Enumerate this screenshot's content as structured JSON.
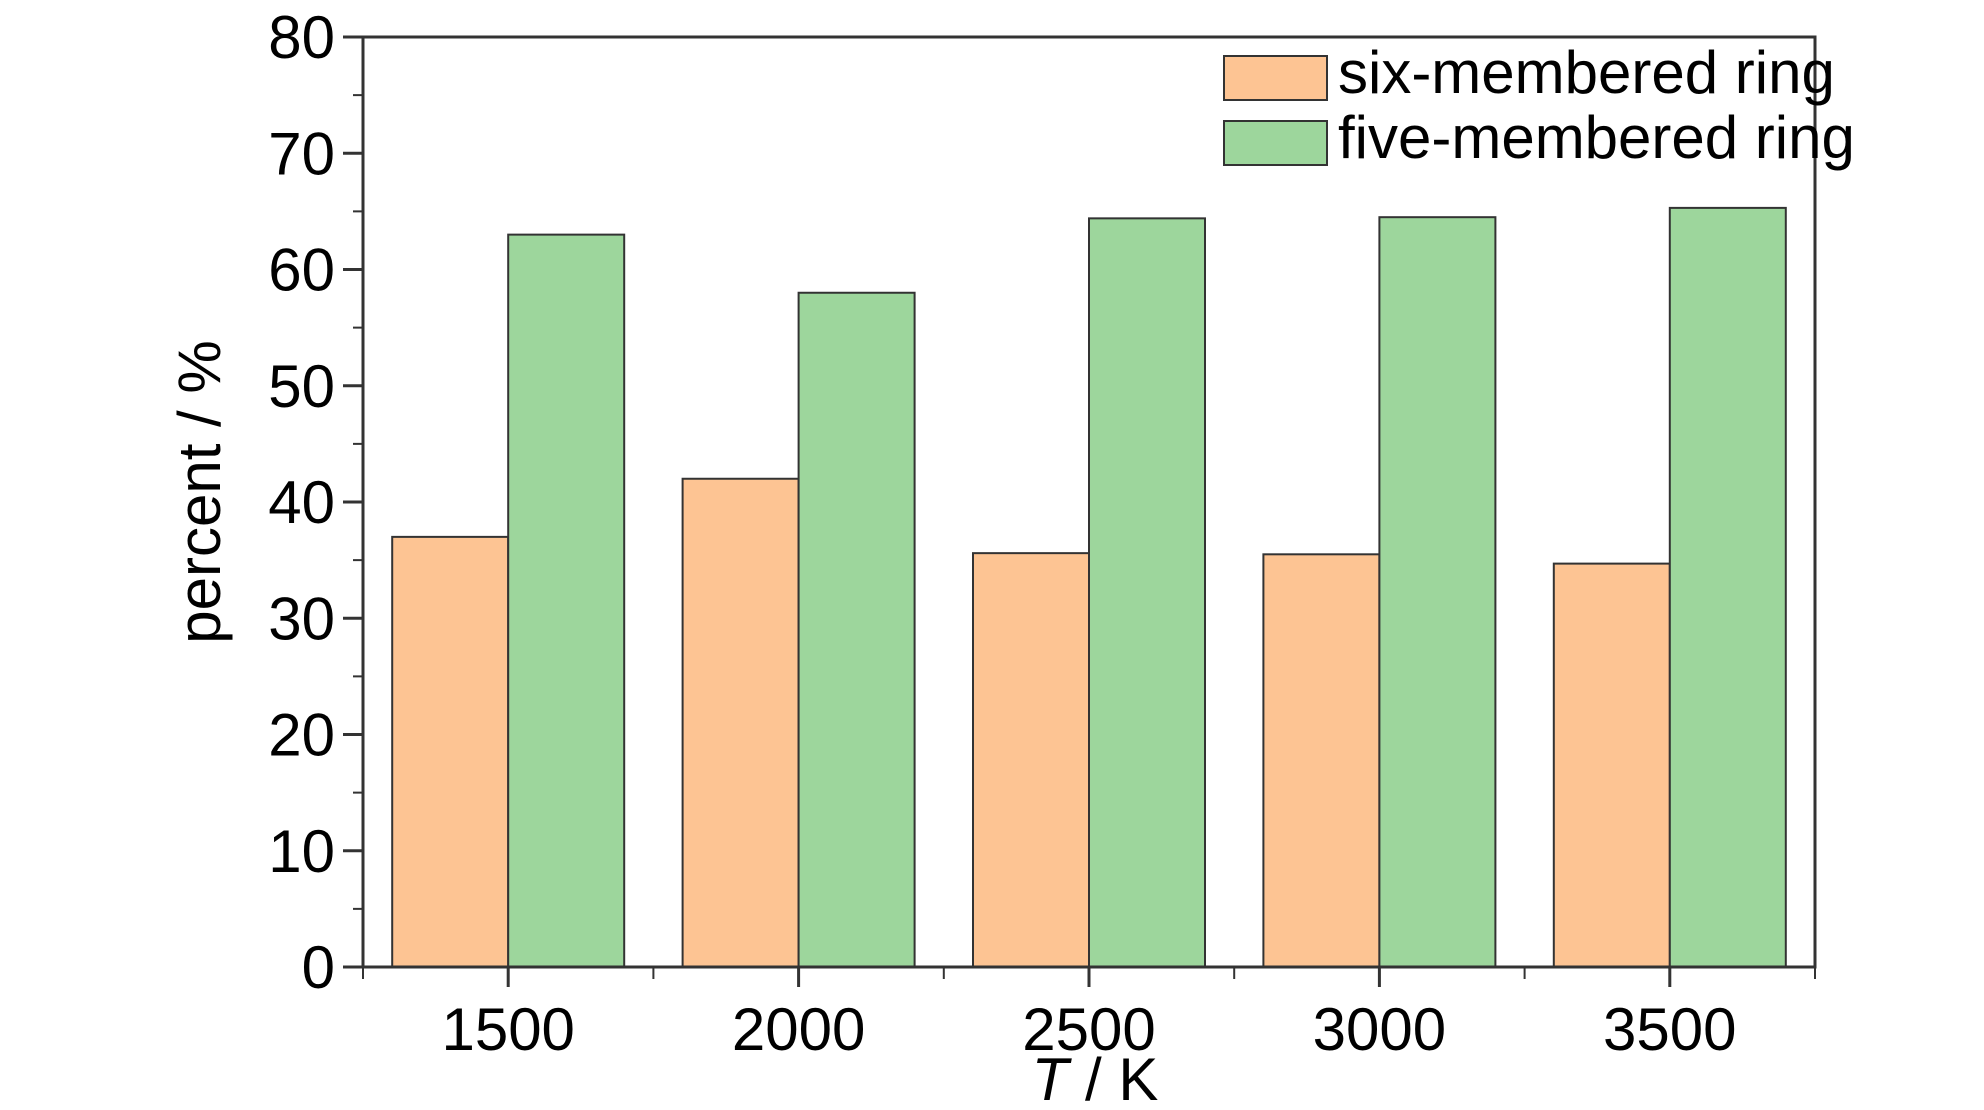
{
  "chart_data": {
    "type": "bar",
    "categories": [
      "1500",
      "2000",
      "2500",
      "3000",
      "3500"
    ],
    "series": [
      {
        "name": "six-membered ring",
        "values": [
          37.0,
          42.0,
          35.6,
          35.5,
          34.7
        ],
        "color": "#fdc493"
      },
      {
        "name": "five-membered ring",
        "values": [
          63.0,
          58.0,
          64.4,
          64.5,
          65.3
        ],
        "color": "#9dd69c"
      }
    ],
    "title": "",
    "xlabel_italic": "T",
    "xlabel_rest": " / K",
    "ylabel": "percent / %",
    "ylim": [
      0,
      80
    ],
    "yticks": [
      0,
      10,
      20,
      30,
      40,
      50,
      60,
      70,
      80
    ],
    "grid": false,
    "legend_position": "top-right"
  }
}
